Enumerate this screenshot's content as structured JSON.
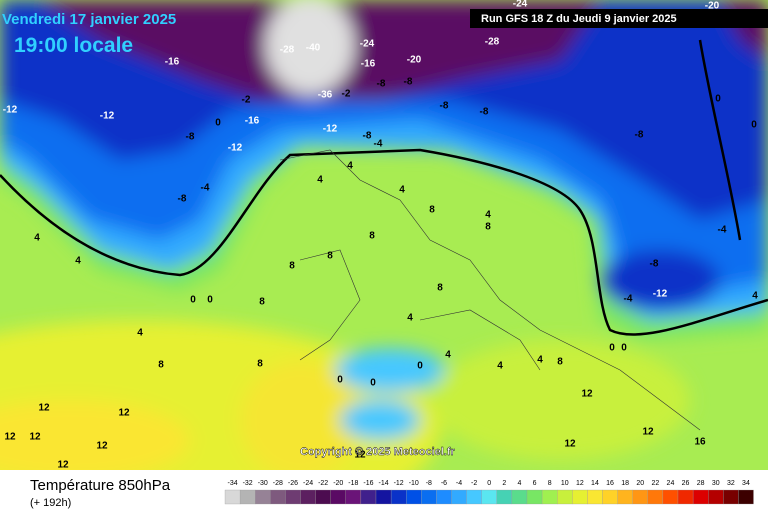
{
  "header": {
    "date": "Vendredi 17 janvier 2025",
    "time": "19:00 locale",
    "run": "Run GFS 18 Z du Jeudi 9 janvier 2025",
    "copyright": "Copyright © 2025 Meteociel.fr"
  },
  "legend": {
    "title": "Température 850hPa",
    "lead": "(+ 192h)",
    "scale": [
      {
        "value": -34,
        "color": "#d8d8d8"
      },
      {
        "value": -32,
        "color": "#b4b4b4"
      },
      {
        "value": -30,
        "color": "#968296"
      },
      {
        "value": -28,
        "color": "#7e5a7e"
      },
      {
        "value": -26,
        "color": "#6e3c72"
      },
      {
        "value": -24,
        "color": "#5c2060"
      },
      {
        "value": -22,
        "color": "#4c0c50"
      },
      {
        "value": -20,
        "color": "#5a0a64"
      },
      {
        "value": -18,
        "color": "#6a1478"
      },
      {
        "value": -16,
        "color": "#40208c"
      },
      {
        "value": -14,
        "color": "#1414a0"
      },
      {
        "value": -12,
        "color": "#0a32c8"
      },
      {
        "value": -10,
        "color": "#0050e6"
      },
      {
        "value": -8,
        "color": "#0a6ef0"
      },
      {
        "value": -6,
        "color": "#1e8cff"
      },
      {
        "value": -4,
        "color": "#32aaff"
      },
      {
        "value": -2,
        "color": "#46c8ff"
      },
      {
        "value": 0,
        "color": "#5ae6f0"
      },
      {
        "value": 2,
        "color": "#46d2b4"
      },
      {
        "value": 4,
        "color": "#5adc8c"
      },
      {
        "value": 6,
        "color": "#78e664"
      },
      {
        "value": 8,
        "color": "#a0f050"
      },
      {
        "value": 10,
        "color": "#c8f03c"
      },
      {
        "value": 12,
        "color": "#e6f032"
      },
      {
        "value": 14,
        "color": "#fae632"
      },
      {
        "value": 16,
        "color": "#ffd228"
      },
      {
        "value": 18,
        "color": "#ffb41e"
      },
      {
        "value": 20,
        "color": "#ff9614"
      },
      {
        "value": 22,
        "color": "#ff780a"
      },
      {
        "value": 24,
        "color": "#ff5000"
      },
      {
        "value": 26,
        "color": "#f02800"
      },
      {
        "value": 28,
        "color": "#dc0000"
      },
      {
        "value": 30,
        "color": "#b40000"
      },
      {
        "value": 32,
        "color": "#780000"
      },
      {
        "value": 34,
        "color": "#3c0000"
      }
    ]
  },
  "contour_labels": [
    -16,
    -28,
    -40,
    -24,
    -20,
    -16,
    -28,
    -24,
    -20,
    -12,
    -8,
    0,
    -12,
    -16,
    -2,
    -36,
    -2,
    -8,
    -8,
    -8,
    -8,
    -8,
    -12,
    -8,
    -4,
    -4,
    -8,
    -12,
    0,
    -4,
    -8,
    -12,
    -4,
    4,
    4,
    4,
    0,
    0,
    8,
    8,
    8,
    8,
    8,
    8,
    12,
    12,
    12,
    12,
    12,
    12,
    12,
    12,
    16,
    12,
    8,
    4,
    0,
    0,
    0,
    4,
    4,
    8,
    4,
    4,
    4,
    8,
    0,
    0,
    4,
    0,
    4,
    4,
    8,
    12
  ]
}
